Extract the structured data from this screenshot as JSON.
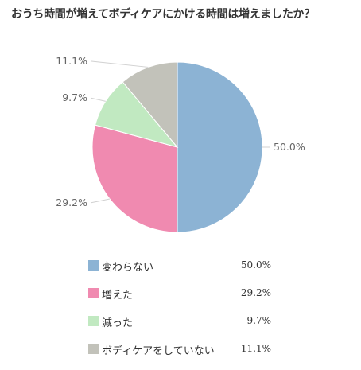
{
  "title": "おうち時間が増えてボディケアにかける時間は増えましたか？",
  "chart_data": {
    "type": "pie",
    "title": "おうち時間が増えてボディケアにかける時間は増えましたか？",
    "slices": [
      {
        "label": "変わらない",
        "value": 50.0,
        "display": "50.0%",
        "color": "#8cb3d4"
      },
      {
        "label": "増えた",
        "value": 29.2,
        "display": "29.2%",
        "color": "#f08ab0"
      },
      {
        "label": "減った",
        "value": 9.7,
        "display": "9.7%",
        "color": "#c1e9c1"
      },
      {
        "label": "ボディケアをしていない",
        "value": 11.1,
        "display": "11.1%",
        "color": "#c2c2ba"
      }
    ],
    "start_angle_deg": 0,
    "direction": "clockwise",
    "legend_placement": "bottom"
  }
}
